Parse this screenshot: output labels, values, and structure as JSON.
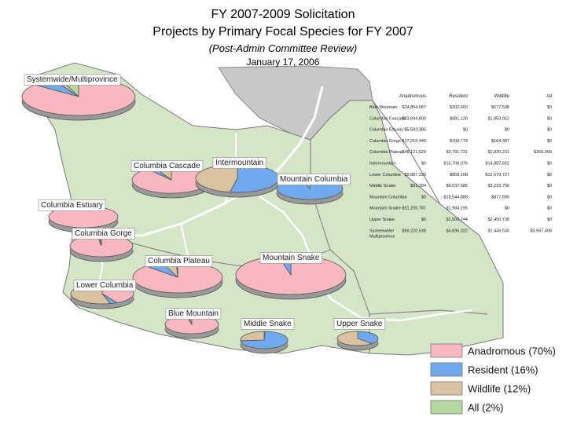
{
  "header": {
    "title": "FY 2007-2009 Solicitation",
    "subtitle": "Projects by Primary Focal Species for FY 2007",
    "note": "(Post-Admin Committee Review)",
    "date": "January 17, 2006"
  },
  "colors": {
    "Anadromous": "#f7b8c0",
    "Resident": "#6fa9ee",
    "Wildlife": "#d9c2a0",
    "All": "#b5d8a0",
    "land": "#d4e6c7",
    "canada": "#c8c8c8",
    "water": "#ffffff"
  },
  "chart_data": {
    "type": "table",
    "columns": [
      "Anadromous",
      "Resident",
      "Wildlife",
      "All"
    ],
    "rows": [
      {
        "name": "Blue Mountain",
        "values": [
          "$24,854,587",
          "$302,000",
          "$577,508",
          "$0"
        ]
      },
      {
        "name": "Columbia Cascade",
        "values": [
          "$23,844,809",
          "$881,126",
          "$1,853,912",
          "$0"
        ]
      },
      {
        "name": "Columbia Estuary",
        "values": [
          "$5,502,385",
          "$0",
          "$0",
          "$0"
        ]
      },
      {
        "name": "Columbia Gorge",
        "values": [
          "$17,515,449",
          "$208,774",
          "$184,387",
          "$0"
        ]
      },
      {
        "name": "Columbia Plateau",
        "values": [
          "$48,121,529",
          "$3,791,731",
          "$2,820,231",
          "$269,000"
        ]
      },
      {
        "name": "Intermountain",
        "values": [
          "$0",
          "$16,708,076",
          "$14,887,652",
          "$0"
        ]
      },
      {
        "name": "Lower Columbia",
        "values": [
          "$9,887,220",
          "$858,108",
          "$12,679,727",
          "$0"
        ]
      },
      {
        "name": "Middle Snake",
        "values": [
          "$91,394",
          "$9,037,585",
          "$3,233,756",
          "$0"
        ]
      },
      {
        "name": "Mountain Columbia",
        "values": [
          "$0",
          "$18,544,888",
          "$877,890",
          "$0"
        ]
      },
      {
        "name": "Mountain Snake",
        "values": [
          "$51,205,787",
          "$1,984,295",
          "$0",
          "$0"
        ]
      },
      {
        "name": "Upper Snake",
        "values": [
          "$0",
          "$1,500,744",
          "$2,450,738",
          "$0"
        ]
      },
      {
        "name": "Systemwide/ Multiprovince",
        "values": [
          "$59,220,538",
          "$4,695,322",
          "$1,445,630",
          "$3,597,408"
        ]
      }
    ],
    "legend": [
      {
        "key": "Anadromous",
        "label": "Anadromous (70%)"
      },
      {
        "key": "Resident",
        "label": "Resident (16%)"
      },
      {
        "key": "Wildlife",
        "label": "Wildlife (12%)"
      },
      {
        "key": "All",
        "label": "All (2%)"
      }
    ],
    "legend_position": "bottom-right",
    "pies": [
      {
        "label": "Systemwide/Multiprovince",
        "values": [
          59220538,
          4695322,
          1445630,
          3597408
        ]
      },
      {
        "label": "Columbia Cascade",
        "values": [
          23844809,
          881126,
          1853912,
          0
        ]
      },
      {
        "label": "Intermountain",
        "values": [
          0,
          16708076,
          14887652,
          0
        ]
      },
      {
        "label": "Mountain Columbia",
        "values": [
          0,
          18544888,
          877890,
          0
        ]
      },
      {
        "label": "Columbia Estuary",
        "values": [
          5502385,
          0,
          0,
          0
        ]
      },
      {
        "label": "Columbia Gorge",
        "values": [
          17515449,
          208774,
          184387,
          0
        ]
      },
      {
        "label": "Columbia Plateau",
        "values": [
          48121529,
          3791731,
          2820231,
          269000
        ]
      },
      {
        "label": "Lower Columbia",
        "values": [
          9887220,
          858108,
          12679727,
          0
        ]
      },
      {
        "label": "Mountain Snake",
        "values": [
          51205787,
          1984295,
          0,
          0
        ]
      },
      {
        "label": "Blue Mountain",
        "values": [
          24854587,
          302000,
          577508,
          0
        ]
      },
      {
        "label": "Middle Snake",
        "values": [
          91394,
          9037585,
          3233756,
          0
        ]
      },
      {
        "label": "Upper Snake",
        "values": [
          0,
          1500744,
          2450738,
          0
        ]
      }
    ]
  }
}
